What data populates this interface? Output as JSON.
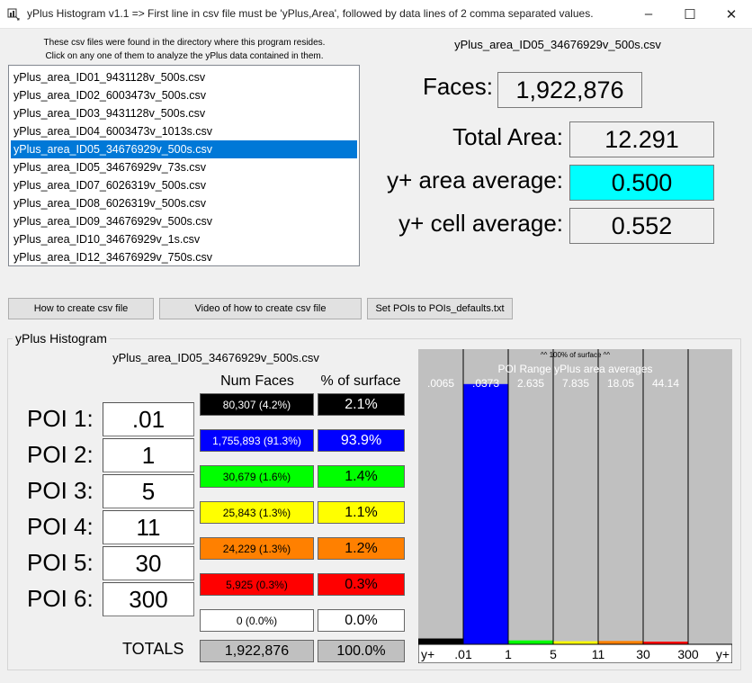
{
  "window": {
    "title": "yPlus Histogram v1.1 => First line in csv file must be 'yPlus,Area', followed by data lines of 2 comma separated values.",
    "min_glyph": "–",
    "max_glyph": "☐",
    "close_glyph": "✕"
  },
  "files": {
    "hint_line1": "These csv files were found in the directory where this program resides.",
    "hint_line2": "Click on any one of them to analyze the yPlus data contained in them.",
    "items": [
      "yPlus_area_ID01_9431128v_500s.csv",
      "yPlus_area_ID02_6003473v_500s.csv",
      "yPlus_area_ID03_9431128v_500s.csv",
      "yPlus_area_ID04_6003473v_1013s.csv",
      "yPlus_area_ID05_34676929v_500s.csv",
      "yPlus_area_ID05_34676929v_73s.csv",
      "yPlus_area_ID07_6026319v_500s.csv",
      "yPlus_area_ID08_6026319v_500s.csv",
      "yPlus_area_ID09_34676929v_500s.csv",
      "yPlus_area_ID10_34676929v_1s.csv",
      "yPlus_area_ID12_34676929v_750s.csv"
    ],
    "selected_index": 4
  },
  "summary": {
    "file_title": "yPlus_area_ID05_34676929v_500s.csv",
    "faces_label": "Faces:",
    "faces_value": "1,922,876",
    "total_area_label": "Total Area:",
    "total_area_value": "12.291",
    "area_avg_label": "y+ area average:",
    "area_avg_value": "0.500",
    "cell_avg_label": "y+ cell average:",
    "cell_avg_value": "0.552",
    "highlight_color": "#00ffff"
  },
  "buttons": {
    "how_to": "How to create csv file",
    "video": "Video of how to create csv file",
    "set_pois": "Set POIs to POIs_defaults.txt"
  },
  "histogram": {
    "group_title": "yPlus Histogram",
    "file_title": "yPlus_area_ID05_34676929v_500s.csv",
    "num_faces_header": "Num Faces",
    "pct_header": "% of surface",
    "pois": [
      {
        "label": "POI 1:",
        "value": ".01"
      },
      {
        "label": "POI 2:",
        "value": "1"
      },
      {
        "label": "POI 3:",
        "value": "5"
      },
      {
        "label": "POI 4:",
        "value": "11"
      },
      {
        "label": "POI 5:",
        "value": "30"
      },
      {
        "label": "POI 6:",
        "value": "300"
      }
    ],
    "rows": [
      {
        "faces": "80,307 (4.2%)",
        "pct": "2.1%",
        "bg": "#000000",
        "fg": "#ffffff"
      },
      {
        "faces": "1,755,893 (91.3%)",
        "pct": "93.9%",
        "bg": "#0000ff",
        "fg": "#ffffff"
      },
      {
        "faces": "30,679 (1.6%)",
        "pct": "1.4%",
        "bg": "#00ff00",
        "fg": "#000000"
      },
      {
        "faces": "25,843 (1.3%)",
        "pct": "1.1%",
        "bg": "#ffff00",
        "fg": "#000000"
      },
      {
        "faces": "24,229 (1.3%)",
        "pct": "1.2%",
        "bg": "#ff8000",
        "fg": "#000000"
      },
      {
        "faces": "5,925 (0.3%)",
        "pct": "0.3%",
        "bg": "#ff0000",
        "fg": "#000000"
      },
      {
        "faces": "0 (0.0%)",
        "pct": "0.0%",
        "bg": "#ffffff",
        "fg": "#000000"
      }
    ],
    "totals_label": "TOTALS",
    "totals_faces": "1,922,876",
    "totals_pct": "100.0%",
    "totals_bg": "#c0c0c0"
  },
  "chart_data": {
    "type": "bar",
    "title": "POI Range yPlus area averages",
    "top_note": "^^ 100% of surface ^^",
    "x_tick_labels": [
      "y+",
      ".01",
      "1",
      "5",
      "11",
      "30",
      "300",
      "y+"
    ],
    "categories": [
      "< .01",
      ".01-1",
      "1-5",
      "5-11",
      "11-30",
      "30-300",
      "> 300"
    ],
    "values": [
      2.1,
      93.9,
      1.4,
      1.1,
      1.2,
      0.3,
      0.0
    ],
    "range_averages": [
      ".0065",
      ".0373",
      "2.635",
      "7.835",
      "18.05",
      "44.14",
      ""
    ],
    "colors": [
      "#000000",
      "#0000ff",
      "#00ff00",
      "#ffff00",
      "#ff8000",
      "#ff0000",
      "#ffffff"
    ],
    "ylim": [
      0,
      100
    ],
    "background": "#c0c0c0"
  }
}
